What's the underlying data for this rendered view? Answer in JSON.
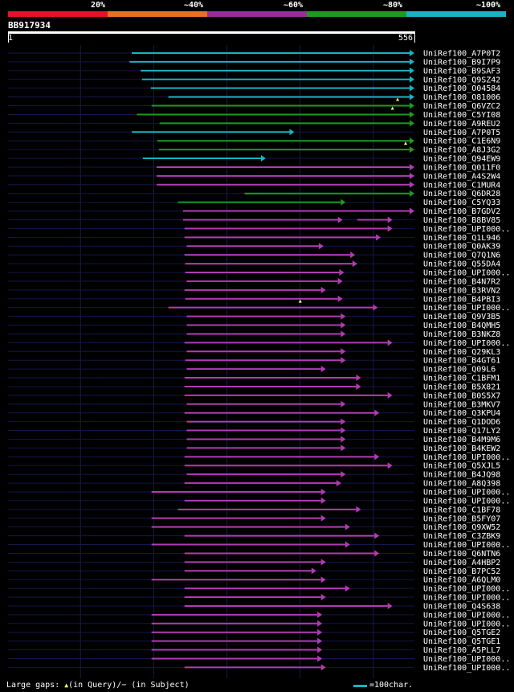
{
  "header": {
    "legend": [
      {
        "label": "20%",
        "color": "#e8102a"
      },
      {
        "label": "~40%",
        "color": "#e8701f"
      },
      {
        "label": "~60%",
        "color": "#9a2c9c"
      },
      {
        "label": "~80%",
        "color": "#1e9a22"
      },
      {
        "label": "~100%",
        "color": "#19b3c3"
      }
    ],
    "query_id": "BB917934",
    "scale_start": "1",
    "scale_end": "556"
  },
  "footer": {
    "large_gaps_prefix": "Large gaps: ",
    "query_marker": "▲",
    "in_query": "(in Query)/",
    "subject_marker": "−",
    "in_subject": " (in Subject)",
    "scale_text": "=100char."
  },
  "colors": {
    "cyan": "#19b3c3",
    "green": "#1e9a22",
    "purple": "#b03cb4",
    "track": "#15164a",
    "grid": "#1a1a48",
    "marker": "#ffff66"
  },
  "chart_data": {
    "type": "alignment_map",
    "query_length": 556,
    "hits": [
      {
        "id": "UniRef100_A7P0T2",
        "start": 170,
        "end": 556,
        "color": "cyan"
      },
      {
        "id": "UniRef100_B9I7P9",
        "start": 167,
        "end": 556,
        "color": "cyan"
      },
      {
        "id": "UniRef100_B9SAF3",
        "start": 182,
        "end": 556,
        "color": "cyan"
      },
      {
        "id": "UniRef100_Q9SZ42",
        "start": 184,
        "end": 556,
        "color": "cyan"
      },
      {
        "id": "UniRef100_O04584",
        "start": 196,
        "end": 556,
        "color": "cyan"
      },
      {
        "id": "UniRef100_O81006",
        "start": 220,
        "end": 556,
        "color": "cyan"
      },
      {
        "id": "UniRef100_Q6VZC2",
        "start": 197,
        "end": 556,
        "color": "green",
        "marker": 533
      },
      {
        "id": "UniRef100_C5YI08",
        "start": 177,
        "end": 556,
        "color": "green",
        "marker": 526
      },
      {
        "id": "UniRef100_A9REU2",
        "start": 208,
        "end": 556,
        "color": "green"
      },
      {
        "id": "UniRef100_A7P0T5",
        "start": 170,
        "end": 392,
        "color": "cyan"
      },
      {
        "id": "UniRef100_C1E6N9",
        "start": 205,
        "end": 556,
        "color": "green"
      },
      {
        "id": "UniRef100_A8J3G2",
        "start": 207,
        "end": 556,
        "color": "green",
        "marker": 544
      },
      {
        "id": "UniRef100_Q94EW9",
        "start": 185,
        "end": 353,
        "color": "cyan"
      },
      {
        "id": "UniRef100_Q011F0",
        "start": 204,
        "end": 556,
        "color": "purple"
      },
      {
        "id": "UniRef100_A4S2W4",
        "start": 204,
        "end": 556,
        "color": "purple"
      },
      {
        "id": "UniRef100_C1MUR4",
        "start": 204,
        "end": 556,
        "color": "purple"
      },
      {
        "id": "UniRef100_Q6DR28",
        "start": 324,
        "end": 556,
        "color": "green"
      },
      {
        "id": "UniRef100_C5YQ33",
        "start": 233,
        "end": 462,
        "color": "green"
      },
      {
        "id": "UniRef100_B7GDV2",
        "start": 240,
        "end": 556,
        "color": "purple"
      },
      {
        "id": "UniRef100_B8BV85",
        "start": 240,
        "end": 458,
        "color": "purple",
        "end2": 526,
        "start2": 478
      },
      {
        "id": "UniRef100_UPI000..",
        "start": 242,
        "end": 526,
        "color": "purple"
      },
      {
        "id": "UniRef100_Q1L946",
        "start": 242,
        "end": 510,
        "color": "purple"
      },
      {
        "id": "UniRef100_Q0AK39",
        "start": 245,
        "end": 432,
        "color": "purple"
      },
      {
        "id": "UniRef100_Q7Q1N6",
        "start": 242,
        "end": 475,
        "color": "purple"
      },
      {
        "id": "UniRef100_Q55DA4",
        "start": 243,
        "end": 478,
        "color": "purple"
      },
      {
        "id": "UniRef100_UPI000..",
        "start": 243,
        "end": 460,
        "color": "purple"
      },
      {
        "id": "UniRef100_B4N7R2",
        "start": 245,
        "end": 458,
        "color": "purple"
      },
      {
        "id": "UniRef100_B3RVN2",
        "start": 242,
        "end": 435,
        "color": "purple"
      },
      {
        "id": "UniRef100_B4PBI3",
        "start": 243,
        "end": 458,
        "color": "purple"
      },
      {
        "id": "UniRef100_UPI000..",
        "start": 220,
        "end": 506,
        "color": "purple",
        "marker": 400
      },
      {
        "id": "UniRef100_Q9V3B5",
        "start": 245,
        "end": 462,
        "color": "purple"
      },
      {
        "id": "UniRef100_B4QMH5",
        "start": 245,
        "end": 462,
        "color": "purple"
      },
      {
        "id": "UniRef100_B3NKZ8",
        "start": 245,
        "end": 462,
        "color": "purple"
      },
      {
        "id": "UniRef100_UPI000..",
        "start": 242,
        "end": 526,
        "color": "purple"
      },
      {
        "id": "UniRef100_Q29KL3",
        "start": 245,
        "end": 462,
        "color": "purple"
      },
      {
        "id": "UniRef100_B4GT61",
        "start": 243,
        "end": 462,
        "color": "purple"
      },
      {
        "id": "UniRef100_Q09L6",
        "start": 245,
        "end": 435,
        "color": "purple"
      },
      {
        "id": "UniRef100_C1BFM1",
        "start": 242,
        "end": 483,
        "color": "purple"
      },
      {
        "id": "UniRef100_B5X821",
        "start": 242,
        "end": 483,
        "color": "purple"
      },
      {
        "id": "UniRef100_B0S5X7",
        "start": 242,
        "end": 526,
        "color": "purple"
      },
      {
        "id": "UniRef100_B3MKV7",
        "start": 245,
        "end": 462,
        "color": "purple"
      },
      {
        "id": "UniRef100_Q3KPU4",
        "start": 242,
        "end": 508,
        "color": "purple"
      },
      {
        "id": "UniRef100_Q1DOD6",
        "start": 245,
        "end": 462,
        "color": "purple"
      },
      {
        "id": "UniRef100_Q17LY2",
        "start": 245,
        "end": 462,
        "color": "purple"
      },
      {
        "id": "UniRef100_B4M9M6",
        "start": 245,
        "end": 462,
        "color": "purple"
      },
      {
        "id": "UniRef100_B4KEW2",
        "start": 245,
        "end": 462,
        "color": "purple"
      },
      {
        "id": "UniRef100_UPI000..",
        "start": 242,
        "end": 508,
        "color": "purple"
      },
      {
        "id": "UniRef100_Q5XJL5",
        "start": 242,
        "end": 526,
        "color": "purple"
      },
      {
        "id": "UniRef100_B4JQ98",
        "start": 245,
        "end": 462,
        "color": "purple"
      },
      {
        "id": "UniRef100_A8Q398",
        "start": 242,
        "end": 456,
        "color": "purple"
      },
      {
        "id": "UniRef100_UPI000..",
        "start": 197,
        "end": 435,
        "color": "purple"
      },
      {
        "id": "UniRef100_UPI000..",
        "start": 242,
        "end": 435,
        "color": "purple"
      },
      {
        "id": "UniRef100_C1BF78",
        "start": 233,
        "end": 483,
        "color": "purple"
      },
      {
        "id": "UniRef100_B5FY07",
        "start": 197,
        "end": 435,
        "color": "purple"
      },
      {
        "id": "UniRef100_Q9XW52",
        "start": 197,
        "end": 468,
        "color": "purple"
      },
      {
        "id": "UniRef100_C3ZBK9",
        "start": 242,
        "end": 508,
        "color": "purple"
      },
      {
        "id": "UniRef100_UPI000..",
        "start": 197,
        "end": 468,
        "color": "purple"
      },
      {
        "id": "UniRef100_Q6NTN6",
        "start": 242,
        "end": 508,
        "color": "purple"
      },
      {
        "id": "UniRef100_A4HBP2",
        "start": 242,
        "end": 435,
        "color": "purple"
      },
      {
        "id": "UniRef100_B7PC52",
        "start": 242,
        "end": 422,
        "color": "purple"
      },
      {
        "id": "UniRef100_A6QLM0",
        "start": 197,
        "end": 435,
        "color": "purple"
      },
      {
        "id": "UniRef100_UPI000..",
        "start": 242,
        "end": 468,
        "color": "purple"
      },
      {
        "id": "UniRef100_UPI000..",
        "start": 242,
        "end": 435,
        "color": "purple"
      },
      {
        "id": "UniRef100_Q4S638",
        "start": 242,
        "end": 526,
        "color": "purple"
      },
      {
        "id": "UniRef100_UPI000..",
        "start": 197,
        "end": 430,
        "color": "purple"
      },
      {
        "id": "UniRef100_UPI000..",
        "start": 197,
        "end": 430,
        "color": "purple"
      },
      {
        "id": "UniRef100_Q5TGE2",
        "start": 197,
        "end": 430,
        "color": "purple"
      },
      {
        "id": "UniRef100_Q5TGE1",
        "start": 197,
        "end": 430,
        "color": "purple"
      },
      {
        "id": "UniRef100_A5PLL7",
        "start": 197,
        "end": 430,
        "color": "purple"
      },
      {
        "id": "UniRef100_UPI000..",
        "start": 197,
        "end": 430,
        "color": "purple"
      },
      {
        "id": "UniRef100_UPI000..",
        "start": 242,
        "end": 435,
        "color": "purple"
      }
    ]
  }
}
